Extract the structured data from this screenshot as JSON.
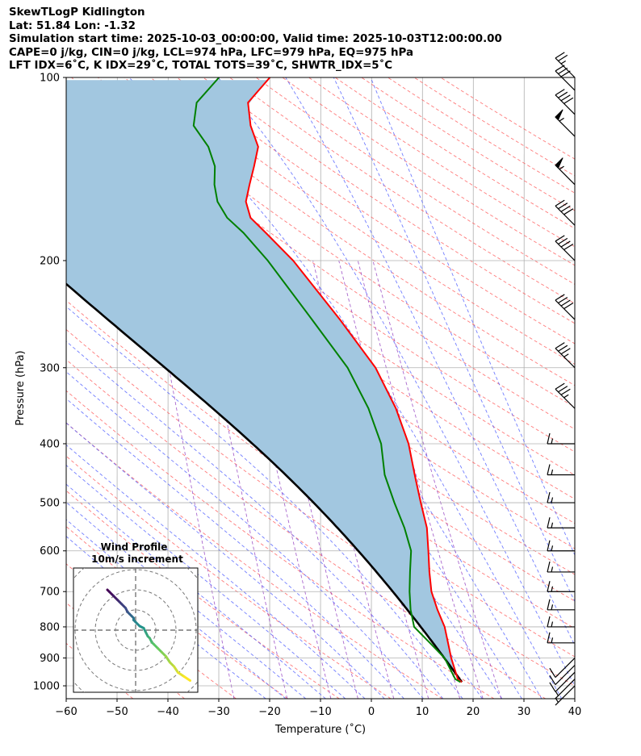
{
  "header": {
    "line1": "SkewTLogP Kidlington",
    "line2": "Lat: 51.84   Lon: -1.32",
    "line3": "Simulation start time: 2025-10-03_00:00:00, Valid time: 2025-10-03T12:00:00.00",
    "line4": "CAPE=0 j/kg, CIN=0 j/kg, LCL=974 hPa, LFC=979 hPa, EQ=975 hPa",
    "line5": "LFT IDX=6˚C, K IDX=29˚C, TOTAL TOTS=39˚C, SHWTR_IDX=5˚C"
  },
  "chart_data": {
    "type": "skewt-logp",
    "xlabel": "Temperature (˚C)",
    "ylabel": "Pressure (hPa)",
    "xlim": [
      -60,
      40
    ],
    "ylim": [
      1050,
      100
    ],
    "x_ticks": [
      -60,
      -50,
      -40,
      -30,
      -20,
      -10,
      0,
      10,
      20,
      30,
      40
    ],
    "x_tick_labels": [
      "−60",
      "−50",
      "−40",
      "−30",
      "−20",
      "−10",
      "0",
      "10",
      "20",
      "30",
      "40"
    ],
    "y_ticks": [
      1000,
      900,
      800,
      700,
      600,
      500,
      400,
      300,
      200,
      100
    ],
    "y_tick_labels": [
      "1000",
      "900",
      "800",
      "700",
      "600",
      "500",
      "400",
      "300",
      "200",
      "100"
    ],
    "temperature": {
      "name": "Temperature",
      "color": "#ff0000",
      "points": [
        [
          986,
          17.8
        ],
        [
          975,
          17
        ],
        [
          900,
          15.7
        ],
        [
          800,
          14.4
        ],
        [
          750,
          13
        ],
        [
          700,
          11.8
        ],
        [
          650,
          11.4
        ],
        [
          600,
          11.2
        ],
        [
          550,
          10.9
        ],
        [
          500,
          9.7
        ],
        [
          450,
          8.5
        ],
        [
          400,
          7.3
        ],
        [
          350,
          4.8
        ],
        [
          300,
          0.8
        ],
        [
          250,
          -6.2
        ],
        [
          200,
          -15.4
        ],
        [
          180,
          -20.8
        ],
        [
          170,
          -23.8
        ],
        [
          160,
          -24.7
        ],
        [
          150,
          -24
        ],
        [
          140,
          -23.1
        ],
        [
          130,
          -22.3
        ],
        [
          120,
          -23.8
        ],
        [
          110,
          -24.3
        ],
        [
          100,
          -20
        ]
      ]
    },
    "dewpoint": {
      "name": "Dewpoint",
      "color": "#008000",
      "points": [
        [
          986,
          17.5
        ],
        [
          975,
          16.5
        ],
        [
          900,
          14.4
        ],
        [
          850,
          11.5
        ],
        [
          800,
          8.4
        ],
        [
          750,
          7.7
        ],
        [
          700,
          7.5
        ],
        [
          650,
          7.6
        ],
        [
          600,
          7.8
        ],
        [
          550,
          6.5
        ],
        [
          500,
          4.5
        ],
        [
          450,
          2.6
        ],
        [
          400,
          1.9
        ],
        [
          350,
          -0.6
        ],
        [
          300,
          -4.7
        ],
        [
          250,
          -11.7
        ],
        [
          200,
          -20.4
        ],
        [
          180,
          -25.2
        ],
        [
          170,
          -28.4
        ],
        [
          160,
          -30.3
        ],
        [
          150,
          -30.9
        ],
        [
          140,
          -30.8
        ],
        [
          130,
          -32.1
        ],
        [
          120,
          -35
        ],
        [
          110,
          -34.4
        ],
        [
          100,
          -30
        ]
      ]
    },
    "parcel": {
      "name": "Parcel path",
      "color": "#000000",
      "start_temp_c": 17.8,
      "start_pressure_hpa": 986
    },
    "shading": {
      "name": "CAPE/CIN area",
      "color": "#a2c7e0"
    },
    "dry_adiabats_theta_c": [
      -50,
      -40,
      -30,
      -20,
      -10,
      0,
      10,
      20,
      30,
      40,
      50,
      60,
      70,
      80,
      90,
      100,
      110,
      120,
      130,
      140,
      150,
      160,
      170,
      180,
      190,
      200,
      210,
      220,
      230,
      240,
      250,
      260,
      270,
      280
    ],
    "moist_adiabats_start_c": [
      -24,
      -20,
      -16,
      -12,
      -8,
      -4,
      0,
      4,
      8,
      12,
      16,
      20,
      24,
      28,
      32,
      36,
      40,
      44,
      48,
      52
    ],
    "mixing_ratio_lines_gkg": [
      0.4,
      1,
      2,
      3,
      5,
      8,
      12,
      16,
      20
    ],
    "wind_barbs": [
      {
        "p": 1000,
        "speed_kt": 6,
        "dir": "SW"
      },
      {
        "p": 975,
        "speed_kt": 7,
        "dir": "SW"
      },
      {
        "p": 950,
        "speed_kt": 8,
        "dir": "SW"
      },
      {
        "p": 925,
        "speed_kt": 10,
        "dir": "SW"
      },
      {
        "p": 900,
        "speed_kt": 12,
        "dir": "SW"
      },
      {
        "p": 850,
        "speed_kt": 15,
        "dir": "W"
      },
      {
        "p": 800,
        "speed_kt": 15,
        "dir": "W"
      },
      {
        "p": 750,
        "speed_kt": 15,
        "dir": "W"
      },
      {
        "p": 700,
        "speed_kt": 15,
        "dir": "W"
      },
      {
        "p": 650,
        "speed_kt": 15,
        "dir": "W"
      },
      {
        "p": 600,
        "speed_kt": 15,
        "dir": "W"
      },
      {
        "p": 550,
        "speed_kt": 15,
        "dir": "W"
      },
      {
        "p": 500,
        "speed_kt": 15,
        "dir": "W"
      },
      {
        "p": 450,
        "speed_kt": 15,
        "dir": "W"
      },
      {
        "p": 400,
        "speed_kt": 15,
        "dir": "W"
      },
      {
        "p": 350,
        "speed_kt": 35,
        "dir": "NW"
      },
      {
        "p": 300,
        "speed_kt": 35,
        "dir": "NW"
      },
      {
        "p": 250,
        "speed_kt": 40,
        "dir": "NW"
      },
      {
        "p": 200,
        "speed_kt": 40,
        "dir": "NW"
      },
      {
        "p": 175,
        "speed_kt": 40,
        "dir": "NW"
      },
      {
        "p": 150,
        "speed_kt": 55,
        "dir": "NW"
      },
      {
        "p": 125,
        "speed_kt": 55,
        "dir": "NW"
      },
      {
        "p": 115,
        "speed_kt": 40,
        "dir": "NW"
      },
      {
        "p": 105,
        "speed_kt": 30,
        "dir": "NW"
      },
      {
        "p": 100,
        "speed_kt": 25,
        "dir": "NW"
      }
    ],
    "hodograph": {
      "title": "Wind Profile",
      "subtitle": "10m/s increment",
      "ring_spacing_ms": 10,
      "points": [
        [
          -14,
          -20
        ],
        [
          -13,
          -19
        ],
        [
          -11,
          -17
        ],
        [
          -9,
          -15
        ],
        [
          -8,
          -14
        ],
        [
          -7,
          -13
        ],
        [
          -5,
          -11
        ],
        [
          -4,
          -9
        ],
        [
          -3,
          -8
        ],
        [
          -2,
          -7
        ],
        [
          -1,
          -6
        ],
        [
          -1,
          -5
        ],
        [
          0,
          -4
        ],
        [
          2,
          -2
        ],
        [
          4,
          -1
        ],
        [
          5,
          1
        ],
        [
          6,
          3
        ],
        [
          7,
          4
        ],
        [
          8,
          6
        ],
        [
          9,
          7
        ],
        [
          11,
          9
        ],
        [
          13,
          11
        ],
        [
          15,
          13
        ],
        [
          17,
          16
        ],
        [
          19,
          18
        ],
        [
          21,
          21
        ],
        [
          24,
          23
        ],
        [
          27,
          25
        ]
      ]
    }
  }
}
